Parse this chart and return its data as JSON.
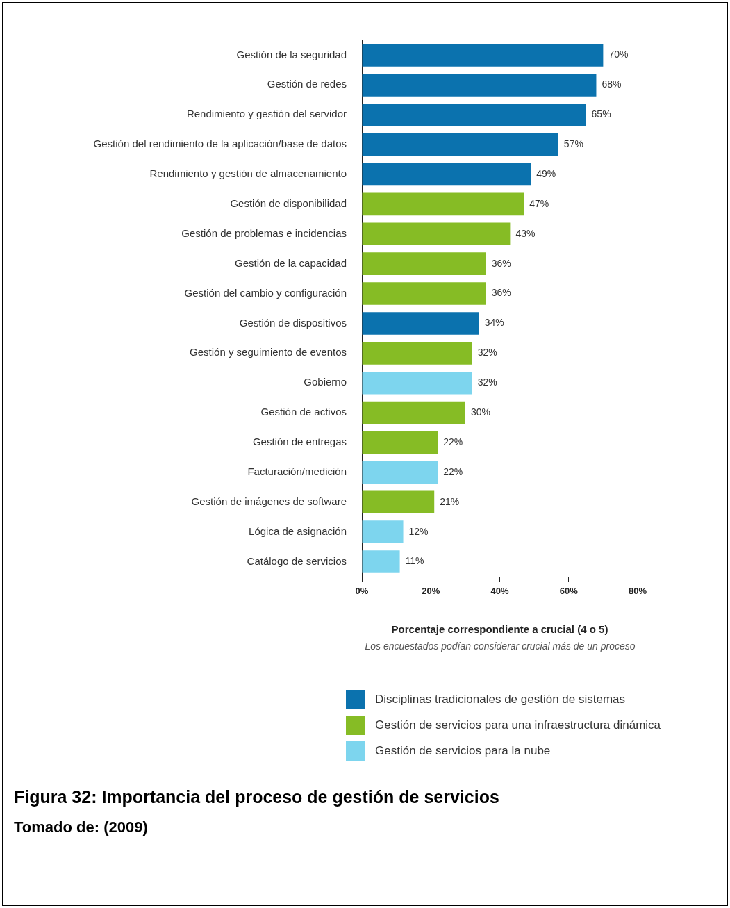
{
  "chart_data": {
    "type": "bar",
    "orientation": "horizontal",
    "stacked": true,
    "title": "Figura 32: Importancia del proceso de gestión de servicios",
    "xlabel": "Porcentaje correspondiente a crucial (4 o 5)",
    "annotations": [
      "Los encuestados podían considerar crucial más de un proceso",
      "Tomado de: (2009)"
    ],
    "categories": [
      "Gestión de la seguridad",
      "Gestión de redes",
      "Rendimiento y gestión del servidor",
      "Gestión del rendimiento de la aplicación/base de datos",
      "Rendimiento y gestión de almacenamiento",
      "Gestión de disponibilidad",
      "Gestión de problemas e incidencias",
      "Gestión de la capacidad",
      "Gestión del cambio y configuración",
      "Gestión de dispositivos",
      "Gestión y seguimiento de eventos",
      "Gobierno",
      "Gestión de activos",
      "Gestión de entregas",
      "Facturación/medición",
      "Gestión de imágenes de software",
      "Lógica de asignación",
      "Catálogo de servicios"
    ],
    "series": [
      {
        "name": "Disciplinas tradicionales de gestión de sistemas",
        "color": "#0b72ae",
        "values": [
          70,
          68,
          65,
          57,
          49,
          null,
          null,
          null,
          null,
          34,
          null,
          null,
          null,
          null,
          null,
          null,
          null,
          null
        ],
        "value_labels": [
          "70%",
          "68%",
          "65%",
          "57%",
          "49%",
          null,
          null,
          null,
          null,
          "34%",
          null,
          null,
          null,
          null,
          null,
          null,
          null,
          null
        ]
      },
      {
        "name": "Gestión de servicios para una infraestructura dinámica",
        "color": "#86bc25",
        "values": [
          null,
          null,
          null,
          null,
          null,
          47,
          43,
          36,
          36,
          null,
          32,
          null,
          30,
          22,
          null,
          21,
          null,
          null
        ],
        "value_labels": [
          null,
          null,
          null,
          null,
          null,
          "47%",
          "43%",
          "36%",
          "36%",
          null,
          "32%",
          null,
          "30%",
          "22%",
          null,
          "21%",
          null,
          null
        ]
      },
      {
        "name": "Gestión de servicios para la nube",
        "color": "#7dd5ee",
        "values": [
          null,
          null,
          null,
          null,
          null,
          null,
          null,
          null,
          null,
          null,
          null,
          32,
          null,
          null,
          22,
          null,
          12,
          11
        ],
        "value_labels": [
          null,
          null,
          null,
          null,
          null,
          null,
          null,
          null,
          null,
          null,
          null,
          "32%",
          null,
          null,
          "22%",
          null,
          "12%",
          "11%"
        ]
      }
    ],
    "xlim": [
      0,
      80
    ],
    "xticks": [
      {
        "value": 0,
        "label": "0%"
      },
      {
        "value": 20,
        "label": "20%"
      },
      {
        "value": 40,
        "label": "40%"
      },
      {
        "value": 60,
        "label": "60%"
      },
      {
        "value": 80,
        "label": "80%"
      }
    ],
    "grid": false,
    "legend": "bottom"
  }
}
